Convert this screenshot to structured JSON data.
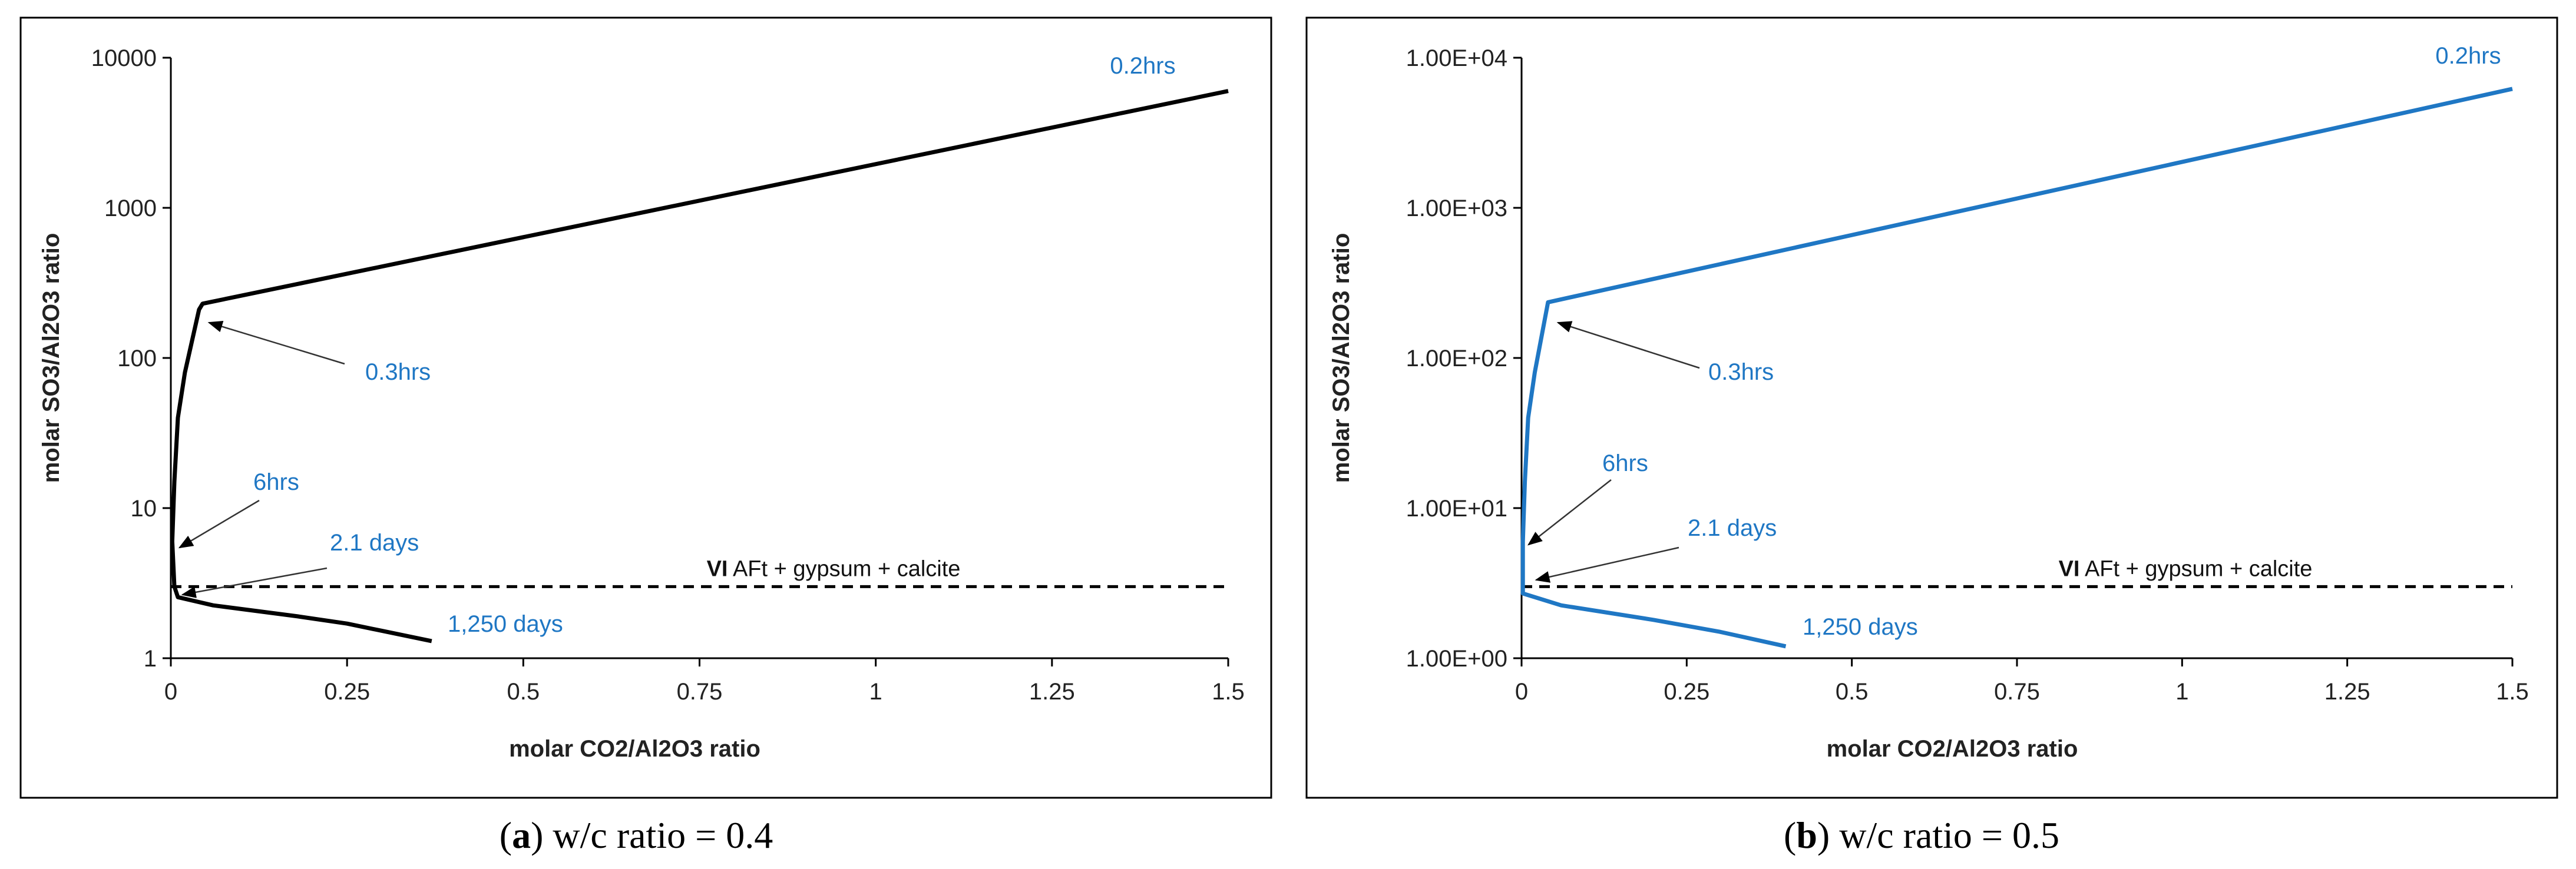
{
  "chart_data": [
    {
      "type": "line",
      "panel_letter": "a",
      "caption": "w/c ratio = 0.4",
      "xlabel": "molar CO2/Al2O3 ratio",
      "ylabel": "molar SO3/Al2O3 ratio",
      "xlim": [
        0,
        1.5
      ],
      "ylim": [
        1,
        10000
      ],
      "y_scale": "log",
      "x_ticks": [
        "0",
        "0.25",
        "0.5",
        "0.75",
        "1",
        "1.25",
        "1.5"
      ],
      "y_ticks": [
        "1",
        "10",
        "100",
        "1000",
        "10000"
      ],
      "line_color": "#000000",
      "series": [
        {
          "values": [
            [
              1.5,
              6000
            ],
            [
              0.045,
              230
            ],
            [
              0.04,
              210
            ],
            [
              0.02,
              80
            ],
            [
              0.01,
              40
            ],
            [
              0.005,
              15
            ],
            [
              0.002,
              6
            ],
            [
              0.005,
              3
            ],
            [
              0.01,
              2.55
            ],
            [
              0.06,
              2.25
            ],
            [
              0.18,
              1.9
            ],
            [
              0.25,
              1.7
            ],
            [
              0.3,
              1.52
            ],
            [
              0.37,
              1.3
            ]
          ]
        }
      ],
      "threshold": {
        "y": 3,
        "label_bold": "VI",
        "label": "AFt + gypsum + calcite"
      },
      "annotations": [
        {
          "text": "0.2hrs",
          "color": "#1f77c4"
        },
        {
          "text": "0.3hrs",
          "color": "#1f77c4"
        },
        {
          "text": "6hrs",
          "color": "#1f77c4"
        },
        {
          "text": "2.1 days",
          "color": "#1f77c4"
        },
        {
          "text": "1,250 days",
          "color": "#1f77c4"
        }
      ]
    },
    {
      "type": "line",
      "panel_letter": "b",
      "caption": "w/c ratio = 0.5",
      "xlabel": "molar CO2/Al2O3 ratio",
      "ylabel": "molar SO3/Al2O3 ratio",
      "xlim": [
        0,
        1.5
      ],
      "ylim": [
        1,
        10000
      ],
      "y_scale": "log",
      "x_ticks": [
        "0",
        "0.25",
        "0.5",
        "0.75",
        "1",
        "1.25",
        "1.5"
      ],
      "y_ticks": [
        "1.00E+00",
        "1.00E+01",
        "1.00E+02",
        "1.00E+03",
        "1.00E+04"
      ],
      "line_color": "#1f77c4",
      "series": [
        {
          "values": [
            [
              1.5,
              6200
            ],
            [
              0.04,
              235
            ],
            [
              0.02,
              80
            ],
            [
              0.01,
              40
            ],
            [
              0.005,
              15
            ],
            [
              0.002,
              6
            ],
            [
              0.002,
              2.7
            ],
            [
              0.06,
              2.25
            ],
            [
              0.2,
              1.8
            ],
            [
              0.3,
              1.5
            ],
            [
              0.4,
              1.2
            ]
          ]
        }
      ],
      "threshold": {
        "y": 3,
        "label_bold": "VI",
        "label": "AFt + gypsum + calcite"
      },
      "annotations": [
        {
          "text": "0.2hrs",
          "color": "#1f77c4"
        },
        {
          "text": "0.3hrs",
          "color": "#1f77c4"
        },
        {
          "text": "6hrs",
          "color": "#1f77c4"
        },
        {
          "text": "2.1 days",
          "color": "#1f77c4"
        },
        {
          "text": "1,250 days",
          "color": "#1f77c4"
        }
      ]
    }
  ]
}
